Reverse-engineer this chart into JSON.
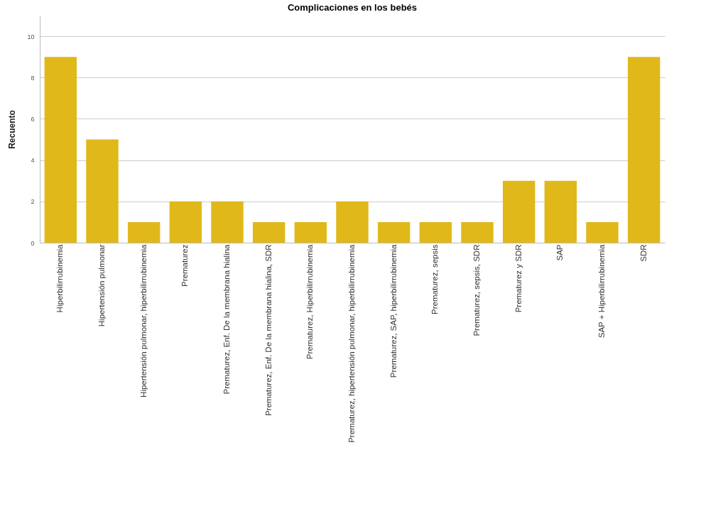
{
  "chart_data": {
    "type": "bar",
    "title": "Complicaciones en los bebés",
    "ylabel": "Recuento",
    "categories": [
      "Hiperbilirrubinemia",
      "Hipertensión pulmonar",
      "Hipertensión pulmonar, hiperbilirrubinemia",
      "Prematurez",
      "Prematurez, Enf. De la membrana hialina",
      "Prematurez, Enf. De la membrana hialina, SDR",
      "Prematurez, Hiperbilirrubinemia",
      "Prematurez, hipertensión pulmonar, hiperbilirrubinemia",
      "Prematurez, SAP, hiperbilirrubinemia",
      "Prematurez, sepsis",
      "Prematurez, sepsis, SDR",
      "Prematurez y SDR",
      "SAP",
      "SAP + Hiperbilirrubinemia",
      "SDR"
    ],
    "values": [
      9,
      5,
      1,
      2,
      2,
      1,
      1,
      2,
      1,
      1,
      1,
      3,
      3,
      1,
      9
    ],
    "color": "#e0b81a",
    "ylim": [
      0,
      11
    ],
    "yticks": [
      0,
      2,
      4,
      6,
      8,
      10
    ],
    "grid": "y"
  }
}
